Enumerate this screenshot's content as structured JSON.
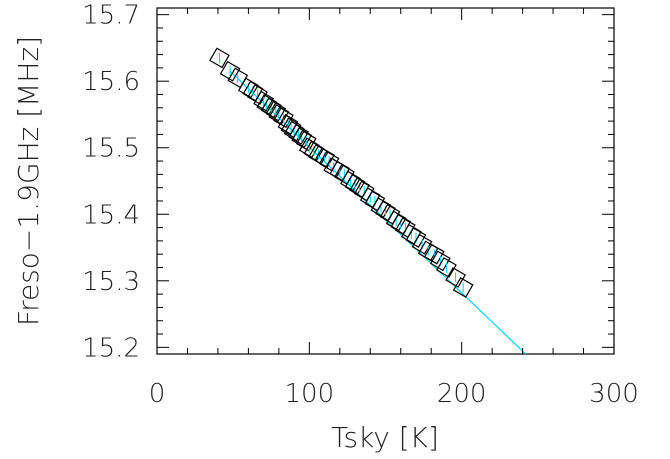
{
  "chart_data": {
    "type": "scatter",
    "xlabel": "Tsky [K]",
    "ylabel": "Freso−1.9GHz [MHz]",
    "xlim": [
      0,
      300
    ],
    "ylim": [
      15.19,
      15.71
    ],
    "x_ticks": [
      0,
      100,
      200,
      300
    ],
    "x_tick_labels": [
      "0",
      "100",
      "200",
      "300"
    ],
    "y_ticks": [
      15.2,
      15.3,
      15.4,
      15.5,
      15.6,
      15.7
    ],
    "y_tick_labels": [
      "15.2",
      "15.3",
      "15.4",
      "15.5",
      "15.6",
      "15.7"
    ],
    "grid": false,
    "marker": "square",
    "marker_color": "#000000",
    "fit_color": "#00d4f0",
    "series": [
      {
        "values": [
          [
            41,
            15.635
          ],
          [
            48,
            15.615
          ],
          [
            53,
            15.605
          ],
          [
            60,
            15.59
          ],
          [
            63,
            15.585
          ],
          [
            66,
            15.58
          ],
          [
            70,
            15.57
          ],
          [
            72,
            15.565
          ],
          [
            75,
            15.56
          ],
          [
            78,
            15.555
          ],
          [
            80,
            15.55
          ],
          [
            83,
            15.545
          ],
          [
            86,
            15.535
          ],
          [
            88,
            15.53
          ],
          [
            90,
            15.525
          ],
          [
            93,
            15.52
          ],
          [
            95,
            15.515
          ],
          [
            98,
            15.51
          ],
          [
            100,
            15.5
          ],
          [
            103,
            15.495
          ],
          [
            106,
            15.49
          ],
          [
            110,
            15.485
          ],
          [
            113,
            15.48
          ],
          [
            116,
            15.47
          ],
          [
            120,
            15.465
          ],
          [
            123,
            15.46
          ],
          [
            127,
            15.45
          ],
          [
            130,
            15.445
          ],
          [
            133,
            15.44
          ],
          [
            136,
            15.435
          ],
          [
            140,
            15.425
          ],
          [
            143,
            15.42
          ],
          [
            147,
            15.41
          ],
          [
            150,
            15.405
          ],
          [
            153,
            15.4
          ],
          [
            157,
            15.39
          ],
          [
            160,
            15.385
          ],
          [
            163,
            15.38
          ],
          [
            167,
            15.37
          ],
          [
            170,
            15.365
          ],
          [
            174,
            15.355
          ],
          [
            178,
            15.345
          ],
          [
            182,
            15.34
          ],
          [
            186,
            15.33
          ],
          [
            190,
            15.32
          ],
          [
            196,
            15.305
          ],
          [
            201,
            15.29
          ]
        ]
      }
    ],
    "fit_line": {
      "x": [
        48,
        242
      ],
      "y": [
        15.615,
        15.19
      ]
    }
  }
}
